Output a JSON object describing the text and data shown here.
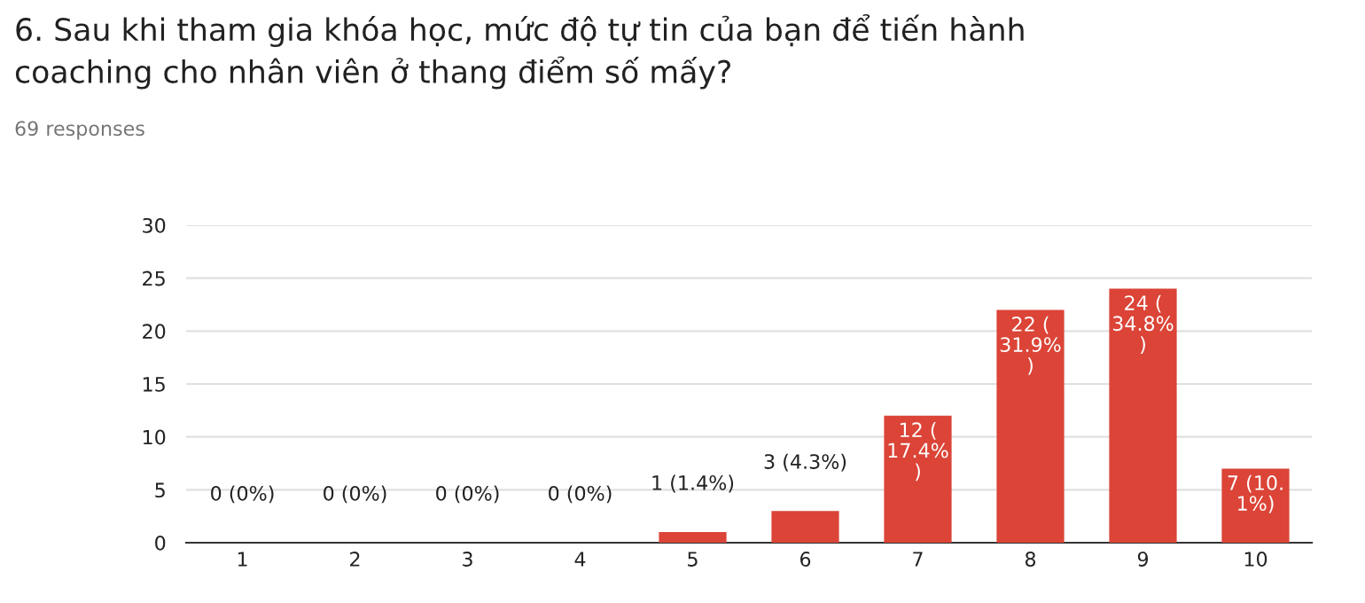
{
  "chart_data": {
    "type": "bar",
    "title": "6. Sau khi tham gia khóa học, mức độ tự tin của bạn để tiến hành\ncoaching cho nhân viên ở thang điểm số mấy?",
    "subtitle": "69 responses",
    "categories": [
      "1",
      "2",
      "3",
      "4",
      "5",
      "6",
      "7",
      "8",
      "9",
      "10"
    ],
    "values": [
      0,
      0,
      0,
      0,
      1,
      3,
      12,
      22,
      24,
      7
    ],
    "value_labels": [
      "0 (0%)",
      "0 (0%)",
      "0 (0%)",
      "0 (0%)",
      "1 (1.4%)",
      "3 (4.3%)",
      "12 (\n17.4%\n)",
      "22 (\n31.9%\n)",
      "24 (\n34.8%\n)",
      "7 (10.\n1%)"
    ],
    "color": "#db4437",
    "ylim": [
      0,
      30
    ],
    "yticks": [
      0,
      5,
      10,
      15,
      20,
      25,
      30
    ],
    "grid": "y"
  }
}
